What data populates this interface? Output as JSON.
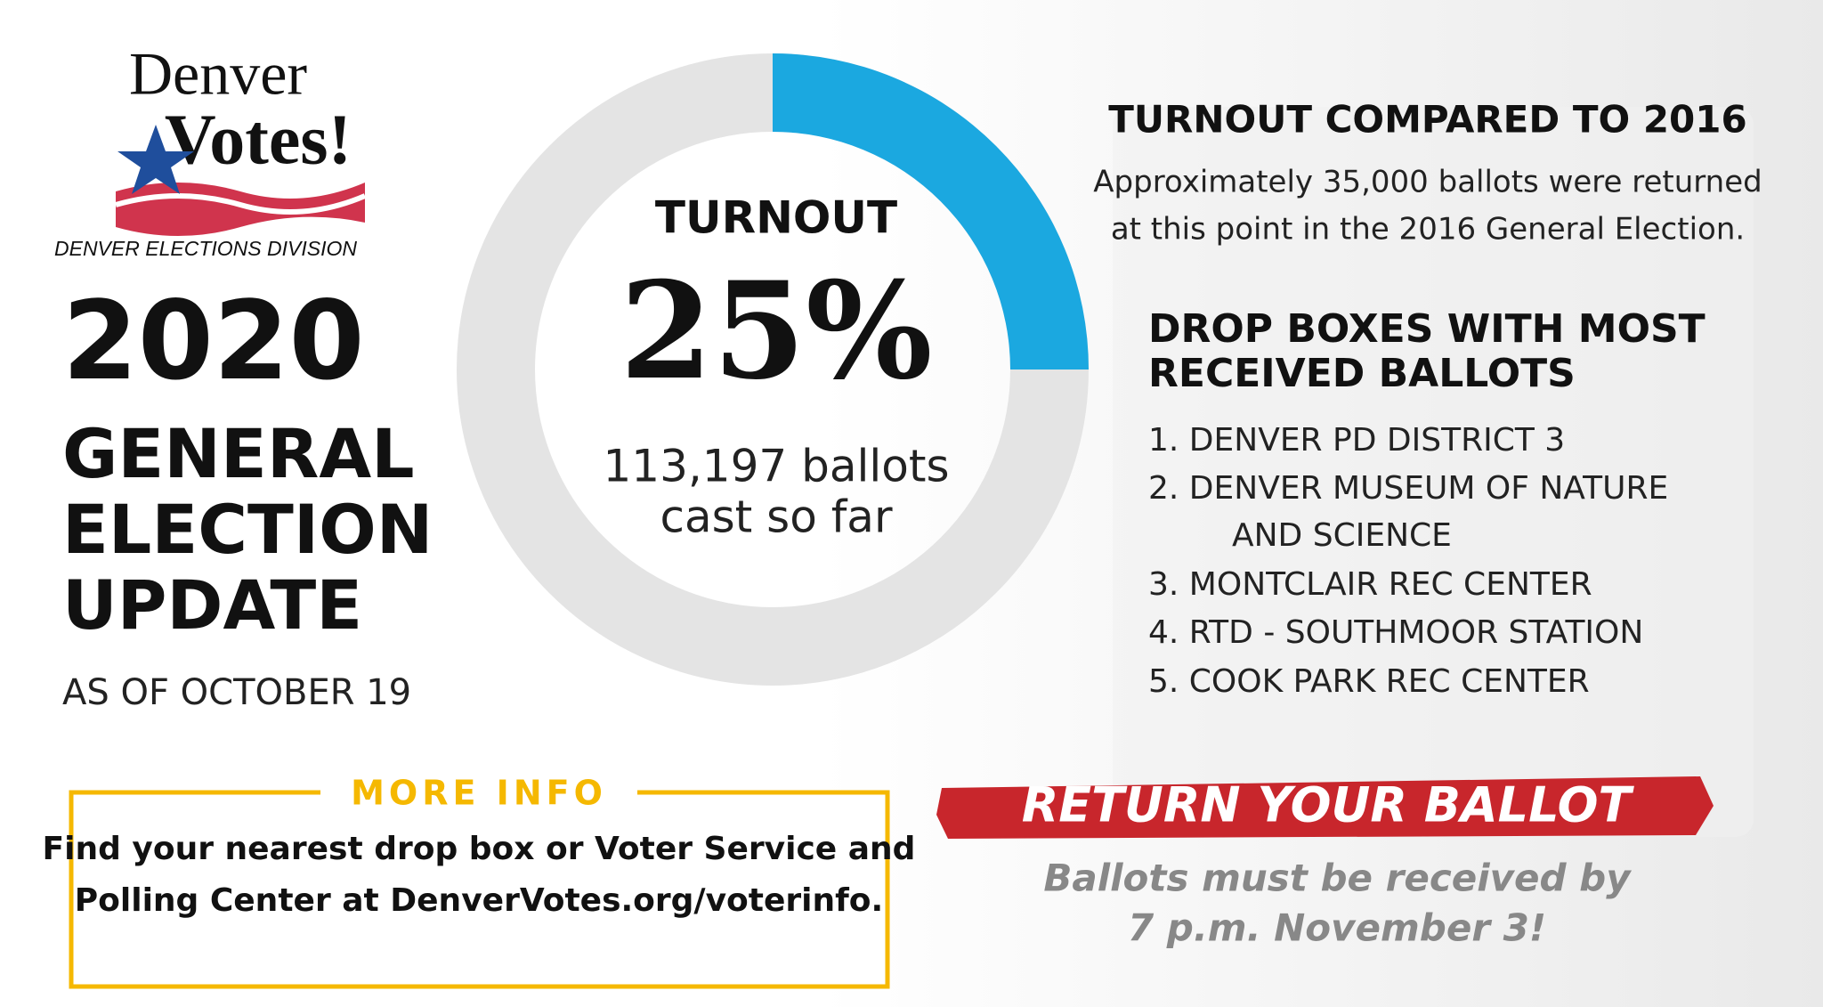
{
  "logo": {
    "line1": "Denver",
    "line2": "Votes!",
    "subtitle": "DENVER ELECTIONS DIVISION"
  },
  "headline": {
    "year": "2020",
    "lines": [
      "GENERAL",
      "ELECTION",
      "UPDATE"
    ],
    "date": "AS OF OCTOBER 19"
  },
  "turnout": {
    "type": "donut",
    "label": "TURNOUT",
    "value": 25,
    "value_label": "25%",
    "detail": [
      "113,197 ballots",
      "cast so far"
    ],
    "color": "#1ba8e0",
    "track_color": "#e4e4e4"
  },
  "comparison": {
    "title": "TURNOUT COMPARED TO 2016",
    "text": [
      "Approximately 35,000 ballots were returned",
      "at this point in the 2016 General Election."
    ]
  },
  "drop_boxes": {
    "title": [
      "DROP BOXES WITH MOST",
      "RECEIVED BALLOTS"
    ],
    "items": [
      [
        "1. DENVER PD DISTRICT 3"
      ],
      [
        "2. DENVER MUSEUM OF NATURE",
        "AND SCIENCE"
      ],
      [
        "3. MONTCLAIR REC CENTER"
      ],
      [
        "4. RTD - SOUTHMOOR STATION"
      ],
      [
        "5. COOK PARK REC CENTER"
      ]
    ]
  },
  "more_info": {
    "title": "MORE INFO",
    "text": [
      "Find your nearest drop box or Voter Service and",
      "Polling Center at DenverVotes.org/voterinfo."
    ]
  },
  "cta": {
    "banner": "RETURN YOUR BALLOT",
    "text": [
      "Ballots must be received by",
      "7 p.m. November 3!"
    ]
  }
}
